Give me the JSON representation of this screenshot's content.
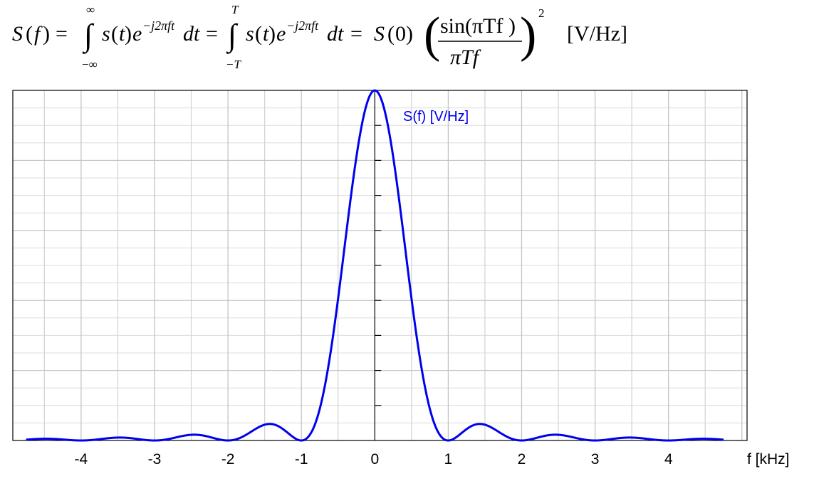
{
  "formula": {
    "S": "S",
    "f": "f",
    "open_paren": "(",
    "close_paren": ")",
    "eq": "=",
    "integral": "∫",
    "int1_upper": "∞",
    "int1_lower": "−∞",
    "int2_upper": "T",
    "int2_lower": "−T",
    "s": "s",
    "t": "t",
    "e": "e",
    "exponent": "−j2πft",
    "dt": "dt",
    "zero": "0",
    "numerator": "sin(πTf )",
    "denominator": "πTf",
    "power": "2",
    "unit": "[V/Hz]"
  },
  "chart_data": {
    "type": "line",
    "series": [
      {
        "name": "S(f)  [V/Hz]",
        "color": "#0000ee",
        "function": "S(0)*(sin(pi*f)/(pi*f))^2, f in kHz, T = 1 ms"
      }
    ],
    "x_label": "f  [kHz]",
    "x_ticks": [
      -4,
      -3,
      -2,
      -1,
      0,
      1,
      2,
      3,
      4
    ],
    "xlim": [
      -4.93,
      5.07
    ],
    "ylim": [
      0,
      1.0
    ],
    "grid": true,
    "line_color": "#0000ee",
    "grid_color": "#c0c0c0"
  }
}
